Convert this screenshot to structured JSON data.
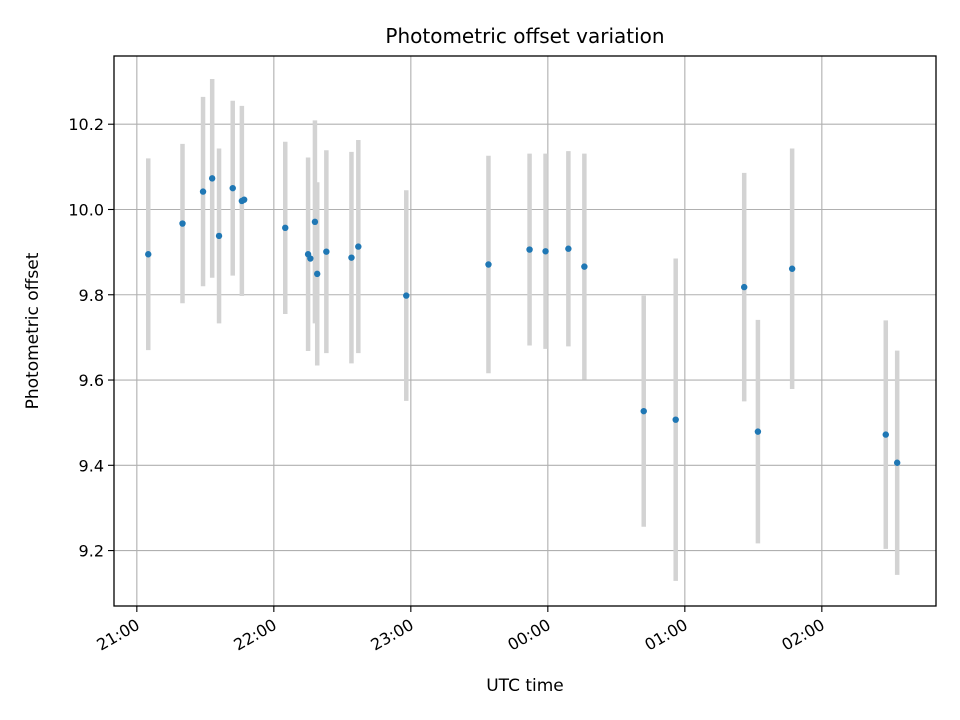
{
  "chart_data": {
    "type": "scatter",
    "title": "Photometric offset variation",
    "xlabel": "UTC time",
    "ylabel": "Photometric offset",
    "x_unit": "UTC time (HH:MM), 2nd day after midnight",
    "xlim": [
      "20:50",
      "02:50"
    ],
    "ylim": [
      9.07,
      10.36
    ],
    "grid": true,
    "x_ticks": [
      {
        "t": "21:00",
        "label": "21:00"
      },
      {
        "t": "22:00",
        "label": "22:00"
      },
      {
        "t": "23:00",
        "label": "23:00"
      },
      {
        "t": "00:00",
        "label": "00:00"
      },
      {
        "t": "01:00",
        "label": "01:00"
      },
      {
        "t": "02:00",
        "label": "02:00"
      }
    ],
    "y_ticks": [
      9.2,
      9.4,
      9.6,
      9.8,
      10.0,
      10.2
    ],
    "y_tick_labels": [
      "9.2",
      "9.4",
      "9.6",
      "9.8",
      "10.0",
      "10.2"
    ],
    "colors": {
      "point": "#1f77b4",
      "errorbar": "#d3d3d3",
      "grid": "#b0b0b0"
    },
    "series": [
      {
        "points": [
          {
            "x": "21:05",
            "y": 9.895,
            "yerr": 0.225
          },
          {
            "x": "21:20",
            "y": 9.967,
            "yerr": 0.187
          },
          {
            "x": "21:29",
            "y": 10.042,
            "yerr": 0.222
          },
          {
            "x": "21:33",
            "y": 10.073,
            "yerr": 0.233
          },
          {
            "x": "21:36",
            "y": 9.938,
            "yerr": 0.205
          },
          {
            "x": "21:42",
            "y": 10.05,
            "yerr": 0.205
          },
          {
            "x": "21:46",
            "y": 10.02,
            "yerr": 0.223
          },
          {
            "x": "21:47",
            "y": 10.023,
            "yerr": 0.0
          },
          {
            "x": "22:05",
            "y": 9.957,
            "yerr": 0.202
          },
          {
            "x": "22:15",
            "y": 9.895,
            "yerr": 0.227
          },
          {
            "x": "22:16",
            "y": 9.885,
            "yerr": 0.0
          },
          {
            "x": "22:18",
            "y": 9.971,
            "yerr": 0.238
          },
          {
            "x": "22:19",
            "y": 9.849,
            "yerr": 0.215
          },
          {
            "x": "22:23",
            "y": 9.901,
            "yerr": 0.238
          },
          {
            "x": "22:34",
            "y": 9.887,
            "yerr": 0.248
          },
          {
            "x": "22:37",
            "y": 9.913,
            "yerr": 0.25
          },
          {
            "x": "22:58",
            "y": 9.798,
            "yerr": 0.247
          },
          {
            "x": "23:34",
            "y": 9.871,
            "yerr": 0.255
          },
          {
            "x": "23:52",
            "y": 9.906,
            "yerr": 0.225
          },
          {
            "x": "23:59",
            "y": 9.902,
            "yerr": 0.229
          },
          {
            "x": "00:09",
            "y": 9.908,
            "yerr": 0.229
          },
          {
            "x": "00:16",
            "y": 9.866,
            "yerr": 0.265
          },
          {
            "x": "00:42",
            "y": 9.527,
            "yerr": 0.271
          },
          {
            "x": "00:56",
            "y": 9.507,
            "yerr": 0.378
          },
          {
            "x": "01:26",
            "y": 9.818,
            "yerr": 0.268
          },
          {
            "x": "01:32",
            "y": 9.479,
            "yerr": 0.262
          },
          {
            "x": "01:47",
            "y": 9.861,
            "yerr": 0.282
          },
          {
            "x": "02:28",
            "y": 9.472,
            "yerr": 0.268
          },
          {
            "x": "02:33",
            "y": 9.406,
            "yerr": 0.263
          }
        ]
      }
    ]
  }
}
